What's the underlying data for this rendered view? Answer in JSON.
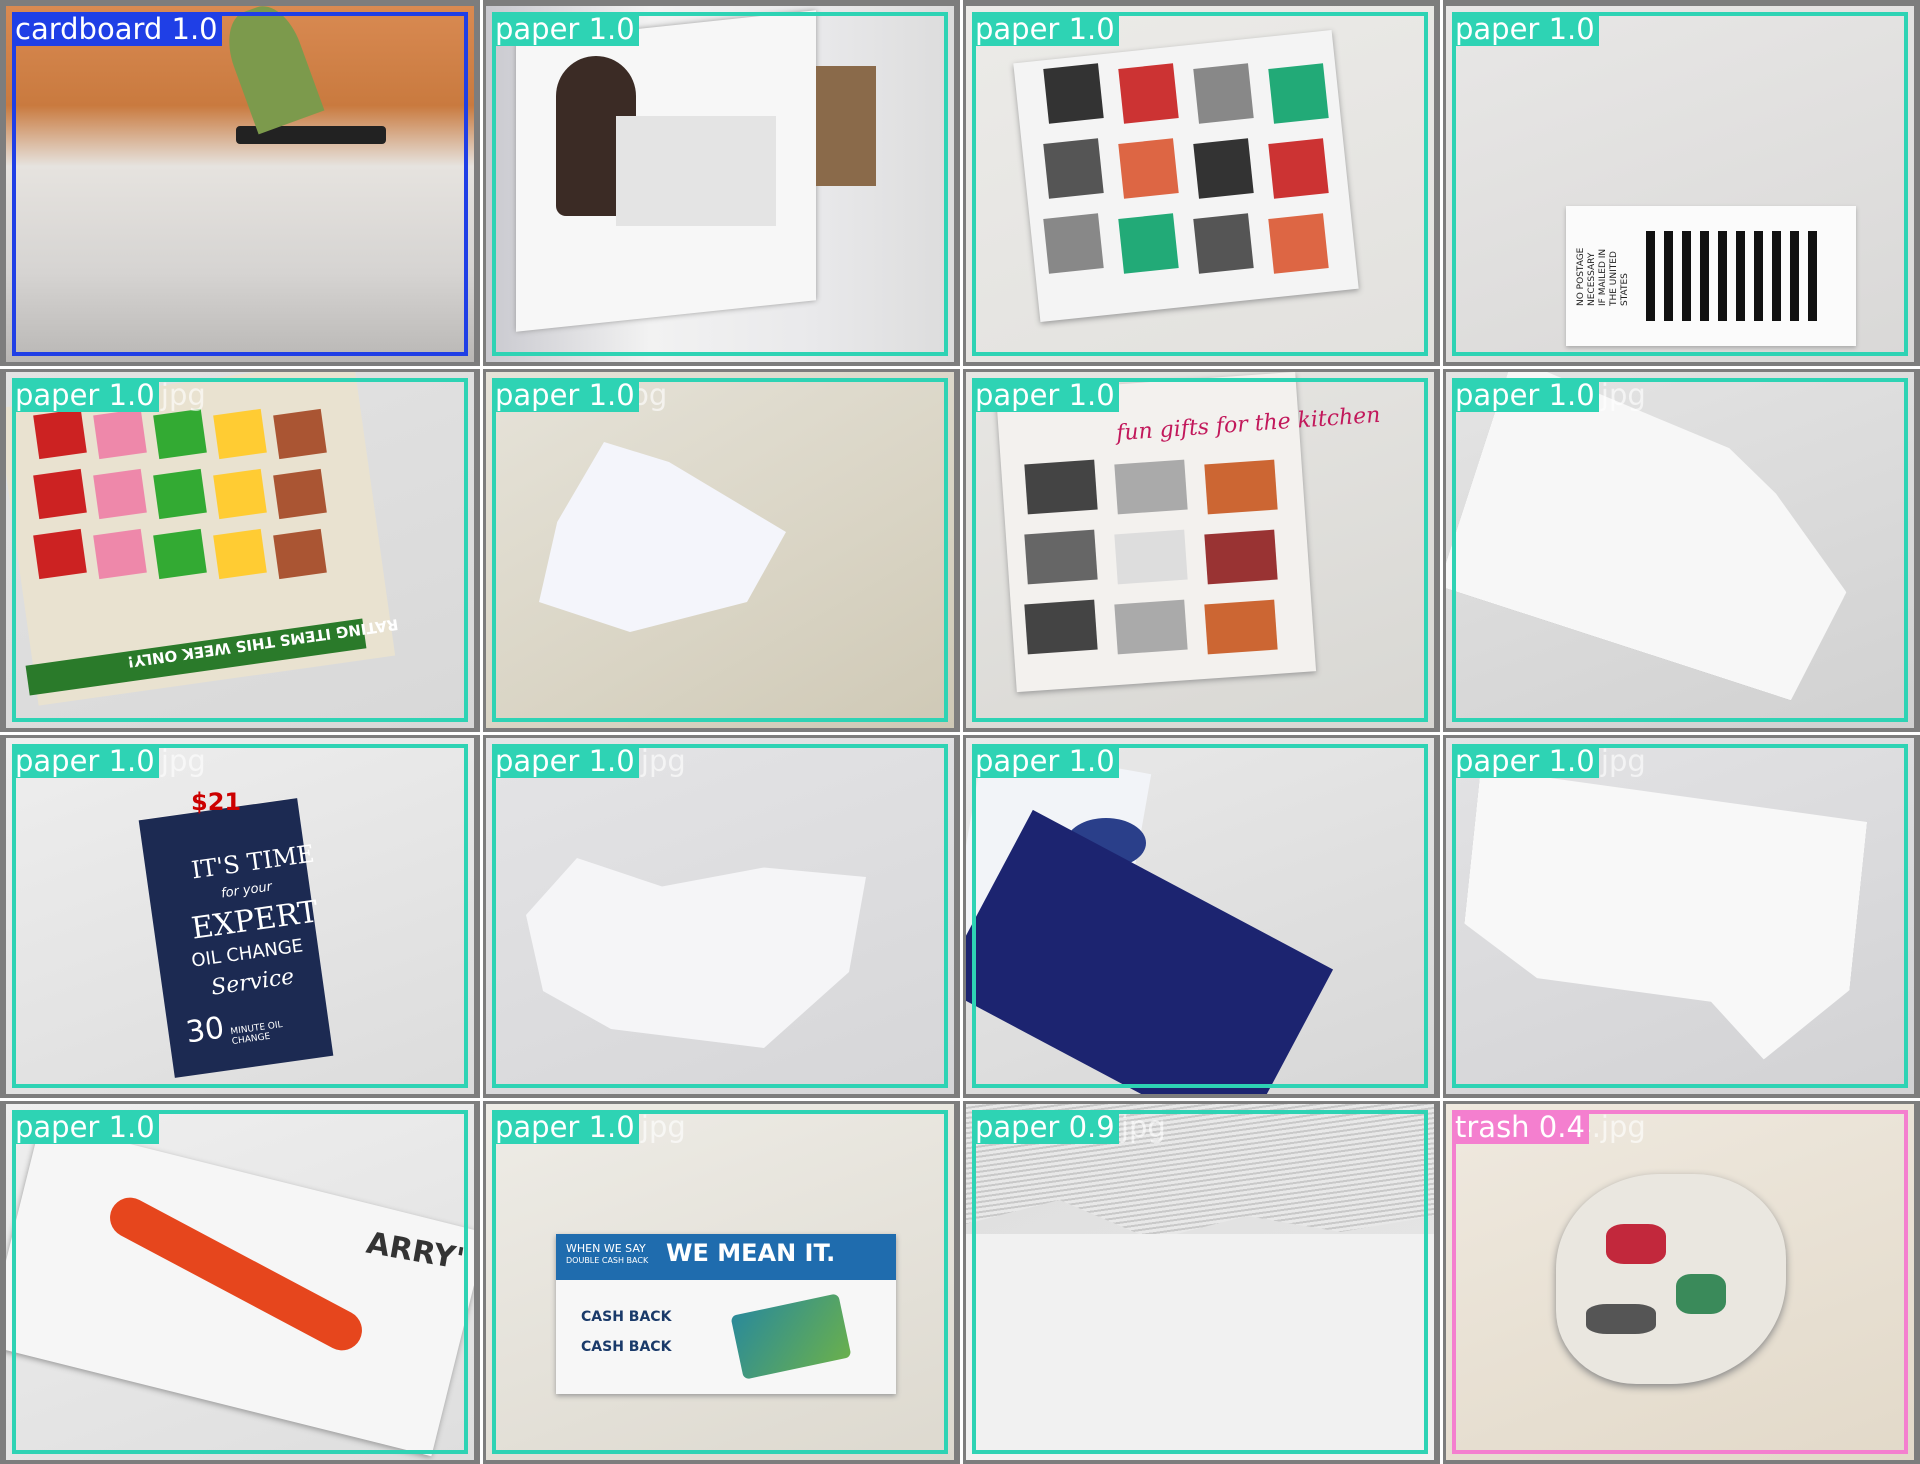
{
  "tiles": [
    {
      "file": "cardboard",
      "file_suffix": ".jpg",
      "label": "cardboard 1.0",
      "color": "#1f3fe6"
    },
    {
      "file": "",
      "file_suffix": ".jpg",
      "label": "paper 1.0",
      "color": "#2ed3b4"
    },
    {
      "file": "",
      "file_suffix": ".jpg",
      "label": "paper 1.0",
      "color": "#2ed3b4"
    },
    {
      "file": "",
      "file_suffix": ".jpg",
      "label": "paper 1.0",
      "color": "#2ed3b4"
    },
    {
      "file": "paper470.jpg",
      "file_suffix": "",
      "label": "paper 1.0",
      "color": "#2ed3b4"
    },
    {
      "file": "paper45.jpg",
      "file_suffix": "",
      "label": "paper 1.0",
      "color": "#2ed3b4"
    },
    {
      "file": "",
      "file_suffix": ".jpg",
      "label": "paper 1.0",
      "color": "#2ed3b4"
    },
    {
      "file": "paper404.jpg",
      "file_suffix": "",
      "label": "paper 1.0",
      "color": "#2ed3b4"
    },
    {
      "file": "paper465.jpg",
      "file_suffix": "",
      "label": "paper 1.0",
      "color": "#2ed3b4"
    },
    {
      "file": "paper449.jpg",
      "file_suffix": "",
      "label": "paper 1.0",
      "color": "#2ed3b4"
    },
    {
      "file": "paper",
      "file_suffix": ".jpg",
      "label": "paper 1.0",
      "color": "#2ed3b4"
    },
    {
      "file": "paper395.jpg",
      "file_suffix": "",
      "label": "paper 1.0",
      "color": "#2ed3b4"
    },
    {
      "file": "paper",
      "file_suffix": "",
      "label": "paper 1.0",
      "color": "#2ed3b4"
    },
    {
      "file": "paper426.jpg",
      "file_suffix": "",
      "label": "paper 1.0",
      "color": "#2ed3b4"
    },
    {
      "file": "paper409.jpg",
      "file_suffix": "",
      "label": "paper 0.9",
      "color": "#2ed3b4"
    },
    {
      "file": "paper394.jpg",
      "file_suffix": "",
      "label": "trash 0.4",
      "color": "#f47fcf"
    }
  ],
  "photo_text": {
    "t8_price": "$21",
    "t8_line1": "IT'S TIME",
    "t8_line2": "for your",
    "t8_line3": "EXPERT",
    "t8_line4": "OIL CHANGE",
    "t8_line5": "Service",
    "t8_line6": "30",
    "t8_line7": "MINUTE OIL CHANGE",
    "t13_head_small": "WHEN WE SAY",
    "t13_head_big": "WE MEAN IT.",
    "t13_sub": "DOUBLE CASH BACK",
    "t13_cb1": "CASH BACK",
    "t13_cb2": "CASH BACK",
    "t6_title": "fun gifts for the kitchen",
    "t4_footer": "RATING ITEMS THIS WEEK ONLY!",
    "t3_postage": "NO POSTAGE NECESSARY IF MAILED IN THE UNITED STATES",
    "t12_brand": "ARRY'"
  }
}
